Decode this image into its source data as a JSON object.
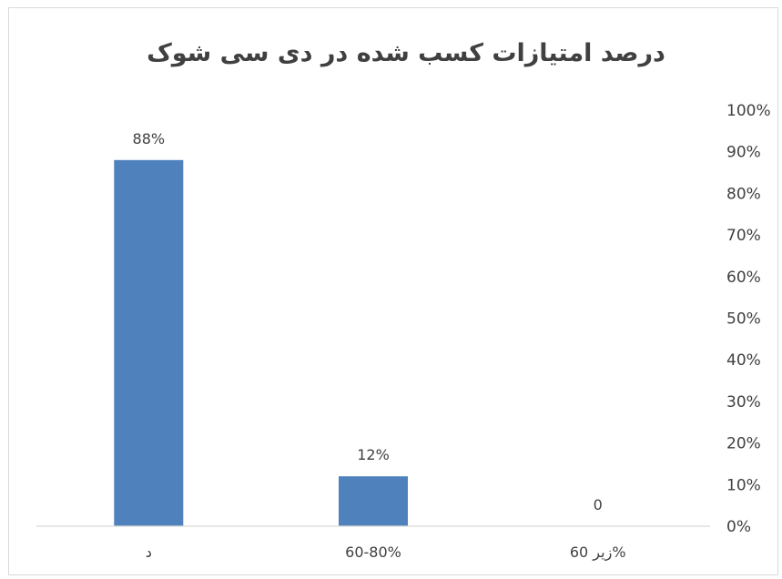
{
  "chart_data": {
    "type": "bar",
    "title": "درصد امتیازات کسب شده در دی سی شوک",
    "xlabel": "",
    "ylabel": "",
    "categories": [
      "زیر 60%",
      "60-80%",
      "د"
    ],
    "values": [
      0,
      0.12,
      0.88
    ],
    "data_labels": [
      "0",
      "12%",
      "88%"
    ],
    "ylim": [
      0,
      1
    ],
    "y_ticks": [
      "0%",
      "10%",
      "20%",
      "30%",
      "40%",
      "50%",
      "60%",
      "70%",
      "80%",
      "90%",
      "100%"
    ],
    "y_axis_position": "right",
    "x_axis_direction": "right-to-left",
    "grid": false,
    "legend": "none",
    "colors": {
      "bar": "#4f81bd",
      "axis": "#d9d9d9",
      "text": "#404040"
    }
  }
}
